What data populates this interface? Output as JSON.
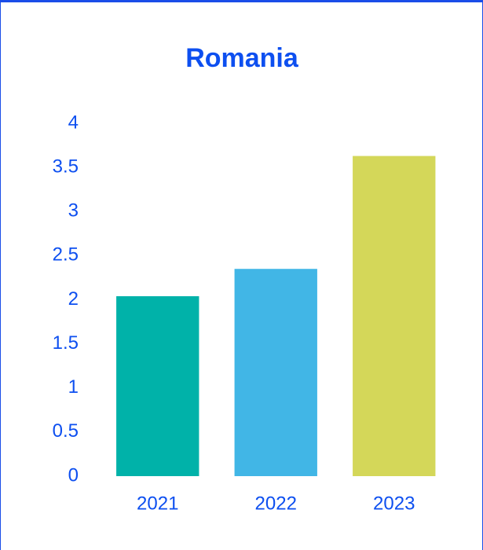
{
  "chart_data": {
    "type": "bar",
    "title": "Romania",
    "categories": [
      "2021",
      "2022",
      "2023"
    ],
    "values": [
      2.04,
      2.35,
      3.63
    ],
    "colors": [
      "#00b2a9",
      "#41b6e6",
      "#d4d759"
    ],
    "ylim": [
      0,
      4
    ],
    "yticks": [
      0,
      0.5,
      1,
      1.5,
      2,
      2.5,
      3,
      3.5,
      4
    ],
    "grid": false
  }
}
